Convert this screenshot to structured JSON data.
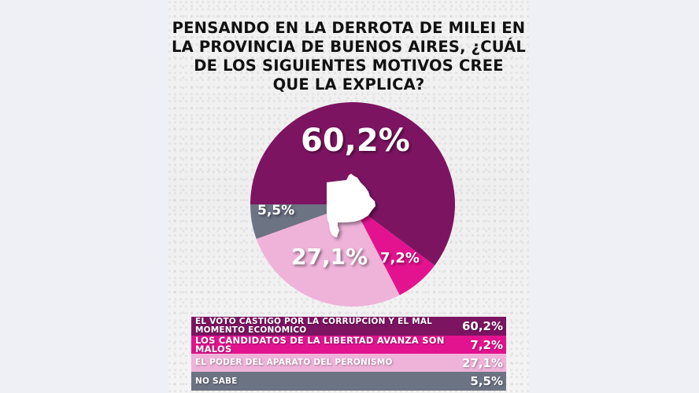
{
  "title": {
    "lines": [
      "PENSANDO EN LA DERROTA DE MILEI EN",
      "LA PROVINCIA DE BUENOS AIRES, ¿CUÁL",
      "DE LOS SIGUIENTES MOTIVOS CREE",
      "QUE LA EXPLICA?"
    ]
  },
  "chart_data": {
    "type": "pie",
    "title": "PENSANDO EN LA DERROTA DE MILEI EN LA PROVINCIA DE BUENOS AIRES, ¿CUÁL DE LOS SIGUIENTES MOTIVOS CREE QUE LA EXPLICA?",
    "categories": [
      "EL VOTO CASTIGO POR LA CORRUPCIÓN Y EL MAL MOMENTO ECONÓMICO",
      "LOS CANDIDATOS DE LA LIBERTAD AVANZA SON MALOS",
      "EL PODER DEL APARATO DEL PERONISMO",
      "NO SABE"
    ],
    "values": [
      60.2,
      7.2,
      27.1,
      5.5
    ],
    "labels": [
      "60,2%",
      "7,2%",
      "27,1%",
      "5,5%"
    ],
    "colors": [
      "#7d1462",
      "#e3138f",
      "#efb3da",
      "#6c7383"
    ],
    "center_icon": "buenos-aires-province-silhouette",
    "legend_position": "bottom"
  },
  "legend": [
    {
      "line1": "EL VOTO CASTIGO POR LA CORRUPCIÓN Y EL MAL",
      "line2": "MOMENTO ECONÓMICO",
      "value": "60,2%"
    },
    {
      "line1": "LOS CANDIDATOS DE LA LIBERTAD AVANZA SON MALOS",
      "line2": "",
      "value": "7,2%"
    },
    {
      "line1": "EL PODER DEL APARATO DEL PERONISMO",
      "line2": "",
      "value": "27,1%"
    },
    {
      "line1": "NO SABE",
      "line2": "",
      "value": "5,5%"
    }
  ]
}
